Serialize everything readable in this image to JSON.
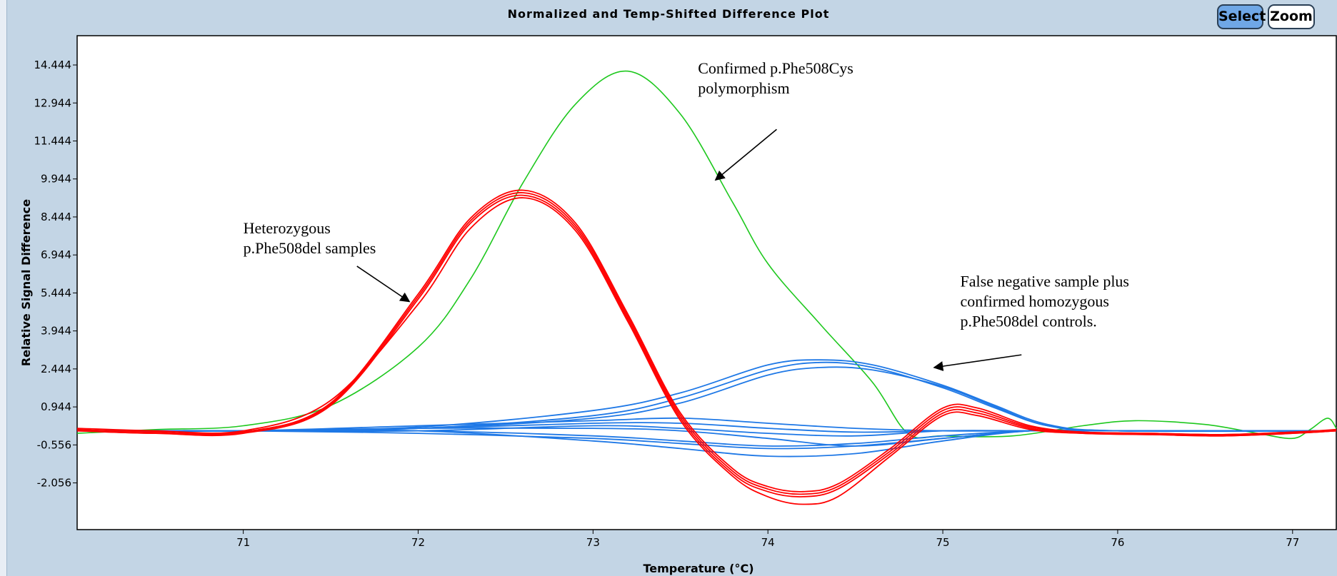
{
  "toolbar": {
    "select_label": "Select",
    "zoom_label": "Zoom"
  },
  "colors": {
    "background": "#c3d5e5",
    "plot_bg": "#ffffff",
    "het": "#ff0000",
    "cys": "#1ec81e",
    "hom": "#1e78e6"
  },
  "chart_data": {
    "type": "line",
    "title": "Normalized and Temp-Shifted Difference Plot",
    "xlabel": "Temperature (°C)",
    "ylabel": "Relative Signal Difference",
    "xlim": [
      70.05,
      77.25
    ],
    "ylim": [
      -3.9,
      15.6
    ],
    "xticks": [
      71,
      72,
      73,
      74,
      75,
      76,
      77
    ],
    "yticks": [
      14.444,
      12.944,
      11.444,
      9.944,
      8.444,
      6.944,
      5.444,
      3.944,
      2.444,
      0.944,
      -0.556,
      -2.056
    ],
    "ytick_labels": [
      "14.444",
      "12.944",
      "11.444",
      "9.944",
      "8.444",
      "6.944",
      "5.444",
      "3.944",
      "2.444",
      "0.944",
      "-0.556",
      "-2.056"
    ],
    "grid": false,
    "legend": "none",
    "series": [
      {
        "color": "#1ec81e",
        "x": [
          70.05,
          70.5,
          71.0,
          71.5,
          72.0,
          72.3,
          72.6,
          72.9,
          73.2,
          73.5,
          73.8,
          74.0,
          74.3,
          74.6,
          74.8,
          75.0,
          75.4,
          75.8,
          76.1,
          76.5,
          76.8,
          77.0,
          77.1,
          77.2,
          77.25
        ],
        "y": [
          -0.1,
          0.05,
          0.2,
          1.0,
          3.3,
          6.0,
          9.8,
          12.9,
          14.2,
          12.5,
          9.0,
          6.6,
          4.2,
          1.9,
          -0.1,
          -0.2,
          -0.2,
          0.2,
          0.4,
          0.25,
          -0.1,
          -0.3,
          0.05,
          0.5,
          0.1
        ]
      },
      {
        "color": "#ff0000",
        "x": [
          70.05,
          70.5,
          71.0,
          71.5,
          72.0,
          72.3,
          72.6,
          72.9,
          73.2,
          73.5,
          73.8,
          74.0,
          74.2,
          74.4,
          74.7,
          75.0,
          75.2,
          75.5,
          75.8,
          76.2,
          76.6,
          77.0,
          77.25
        ],
        "y": [
          0.0,
          -0.1,
          -0.1,
          1.0,
          5.2,
          8.2,
          9.3,
          8.0,
          4.4,
          0.5,
          -1.7,
          -2.4,
          -2.6,
          -2.3,
          -0.9,
          0.7,
          0.7,
          0.1,
          -0.1,
          -0.15,
          -0.2,
          -0.1,
          0.0
        ]
      },
      {
        "color": "#ff0000",
        "x": [
          70.05,
          70.5,
          71.0,
          71.5,
          72.0,
          72.3,
          72.6,
          72.9,
          73.2,
          73.5,
          73.8,
          74.0,
          74.2,
          74.4,
          74.7,
          75.0,
          75.2,
          75.5,
          75.8,
          76.2,
          76.6,
          77.0,
          77.25
        ],
        "y": [
          0.05,
          -0.05,
          -0.05,
          1.1,
          5.4,
          8.4,
          9.5,
          8.2,
          4.6,
          0.7,
          -1.5,
          -2.2,
          -2.4,
          -2.1,
          -0.7,
          0.9,
          0.9,
          0.2,
          -0.05,
          -0.1,
          -0.15,
          -0.05,
          0.05
        ]
      },
      {
        "color": "#ff0000",
        "x": [
          70.05,
          70.5,
          71.0,
          71.5,
          72.0,
          72.3,
          72.6,
          72.9,
          73.2,
          73.5,
          73.8,
          74.0,
          74.2,
          74.4,
          74.7,
          75.0,
          75.2,
          75.5,
          75.8,
          76.2,
          76.6,
          77.0,
          77.25
        ],
        "y": [
          0.1,
          0.0,
          0.0,
          1.2,
          5.0,
          8.0,
          9.2,
          7.9,
          4.3,
          0.4,
          -1.8,
          -2.6,
          -2.9,
          -2.6,
          -1.0,
          0.6,
          0.6,
          0.05,
          -0.1,
          -0.15,
          -0.2,
          -0.1,
          0.0
        ]
      },
      {
        "color": "#ff0000",
        "x": [
          70.05,
          70.5,
          71.0,
          71.5,
          72.0,
          72.3,
          72.6,
          72.9,
          73.2,
          73.5,
          73.8,
          74.0,
          74.2,
          74.4,
          74.7,
          75.0,
          75.2,
          75.5,
          75.8,
          76.2,
          76.6,
          77.0,
          77.25
        ],
        "y": [
          0.0,
          -0.1,
          -0.05,
          1.05,
          5.3,
          8.3,
          9.4,
          8.1,
          4.5,
          0.6,
          -1.6,
          -2.3,
          -2.5,
          -2.2,
          -0.8,
          0.8,
          0.8,
          0.15,
          -0.05,
          -0.1,
          -0.15,
          -0.05,
          0.0
        ]
      },
      {
        "color": "#1e78e6",
        "x": [
          70.05,
          71.0,
          72.0,
          73.0,
          73.5,
          74.0,
          74.3,
          74.6,
          75.0,
          75.3,
          75.6,
          76.0,
          77.25
        ],
        "y": [
          0.0,
          0.0,
          0.1,
          0.6,
          1.3,
          2.4,
          2.7,
          2.5,
          1.7,
          0.9,
          0.2,
          0.0,
          0.0
        ]
      },
      {
        "color": "#1e78e6",
        "x": [
          70.05,
          71.0,
          72.0,
          73.0,
          73.5,
          74.0,
          74.3,
          74.6,
          75.0,
          75.3,
          75.6,
          76.0,
          77.25
        ],
        "y": [
          0.0,
          0.0,
          0.15,
          0.8,
          1.5,
          2.6,
          2.8,
          2.6,
          1.8,
          1.0,
          0.25,
          0.0,
          0.0
        ]
      },
      {
        "color": "#1e78e6",
        "x": [
          70.05,
          71.0,
          72.0,
          73.0,
          73.5,
          74.0,
          74.3,
          74.6,
          75.0,
          75.3,
          75.6,
          76.0,
          77.25
        ],
        "y": [
          0.0,
          0.0,
          0.1,
          0.5,
          1.1,
          2.2,
          2.5,
          2.4,
          1.75,
          0.95,
          0.2,
          0.0,
          0.0
        ]
      },
      {
        "color": "#1e78e6",
        "x": [
          70.05,
          71.0,
          72.0,
          73.0,
          73.5,
          74.0,
          74.5,
          75.0,
          75.5,
          76.0,
          77.25
        ],
        "y": [
          0.0,
          0.0,
          0.1,
          0.3,
          0.3,
          0.1,
          -0.05,
          0.0,
          0.0,
          0.0,
          0.0
        ]
      },
      {
        "color": "#1e78e6",
        "x": [
          70.05,
          71.0,
          72.0,
          73.0,
          73.5,
          74.0,
          74.5,
          75.0,
          75.5,
          76.0,
          77.25
        ],
        "y": [
          0.0,
          0.0,
          0.0,
          -0.2,
          -0.4,
          -0.6,
          -0.5,
          -0.2,
          0.0,
          0.0,
          0.0
        ]
      },
      {
        "color": "#1e78e6",
        "x": [
          70.05,
          71.0,
          72.0,
          73.0,
          73.5,
          74.0,
          74.5,
          75.0,
          75.5,
          76.0,
          77.25
        ],
        "y": [
          0.0,
          0.0,
          0.0,
          -0.4,
          -0.7,
          -1.0,
          -0.9,
          -0.4,
          0.0,
          0.0,
          0.0
        ]
      },
      {
        "color": "#1e78e6",
        "x": [
          70.05,
          71.0,
          72.0,
          73.0,
          73.5,
          74.0,
          74.5,
          75.0,
          75.5,
          76.0,
          77.25
        ],
        "y": [
          0.0,
          0.0,
          0.1,
          0.1,
          0.0,
          -0.3,
          -0.6,
          -0.3,
          0.0,
          0.0,
          0.0
        ]
      },
      {
        "color": "#1e78e6",
        "x": [
          70.05,
          71.0,
          72.0,
          73.0,
          73.5,
          74.0,
          74.5,
          75.0,
          75.5,
          76.0,
          77.25
        ],
        "y": [
          0.0,
          0.0,
          0.2,
          0.4,
          0.5,
          0.3,
          0.1,
          0.0,
          0.0,
          0.0,
          0.0
        ]
      },
      {
        "color": "#1e78e6",
        "x": [
          70.05,
          71.0,
          72.0,
          73.0,
          73.5,
          74.0,
          74.5,
          75.0,
          75.5,
          76.0,
          77.25
        ],
        "y": [
          0.0,
          0.0,
          -0.1,
          -0.3,
          -0.5,
          -0.7,
          -0.6,
          -0.3,
          0.0,
          0.0,
          0.0
        ]
      },
      {
        "color": "#1e78e6",
        "x": [
          70.05,
          71.0,
          72.0,
          73.0,
          73.5,
          74.0,
          74.5,
          75.0,
          75.5,
          76.0,
          77.25
        ],
        "y": [
          0.0,
          0.0,
          0.0,
          0.2,
          0.1,
          -0.1,
          -0.2,
          0.0,
          0.0,
          0.0,
          0.0
        ]
      }
    ],
    "annotations": [
      {
        "lines": [
          "Confirmed p.Phe508Cys",
          "polymorphism"
        ],
        "x": 73.6,
        "y": 14.1,
        "arrow_from": [
          74.05,
          11.9
        ],
        "arrow_to": [
          73.7,
          9.9
        ]
      },
      {
        "lines": [
          "Heterozygous",
          "p.Phe508del samples"
        ],
        "x": 71.0,
        "y": 7.8,
        "arrow_from": [
          71.65,
          6.5
        ],
        "arrow_to": [
          71.95,
          5.1
        ]
      },
      {
        "lines": [
          "False negative sample plus",
          "confirmed homozygous",
          "p.Phe508del controls."
        ],
        "x": 75.1,
        "y": 5.7,
        "arrow_from": [
          75.45,
          3.0
        ],
        "arrow_to": [
          74.95,
          2.5
        ]
      }
    ]
  }
}
